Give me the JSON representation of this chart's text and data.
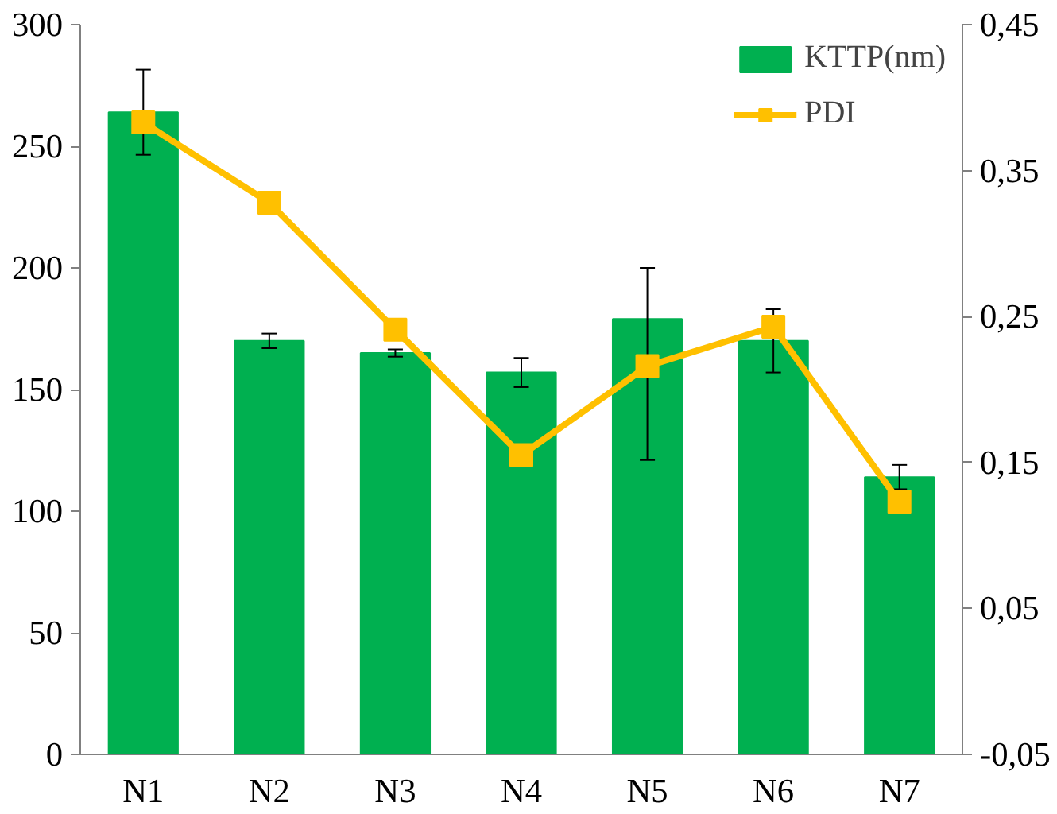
{
  "chart_data": {
    "type": "bar",
    "categories": [
      "N1",
      "N2",
      "N3",
      "N4",
      "N5",
      "N6",
      "N7"
    ],
    "series": [
      {
        "name": "KTTP(nm)",
        "color": "#00b050",
        "values": [
          264,
          170,
          165,
          157,
          179,
          170,
          114
        ],
        "errors": [
          17.5,
          3,
          1.5,
          6,
          [
            121,
            200
          ],
          13,
          5
        ]
      },
      {
        "name": "PDI",
        "type": "line",
        "axis": "y2",
        "color": "#ffc000",
        "marker": "square",
        "values": [
          0.383,
          0.328,
          0.241,
          0.155,
          0.216,
          0.243,
          0.123
        ]
      }
    ],
    "ylim": [
      0,
      300
    ],
    "yticks": [
      0,
      50,
      100,
      150,
      200,
      250,
      300
    ],
    "y2lim": [
      -0.05,
      0.45
    ],
    "y2ticks": [
      {
        "value": -0.05,
        "label": "-0,05"
      },
      {
        "value": 0.05,
        "label": "0,05"
      },
      {
        "value": 0.15,
        "label": "0,15"
      },
      {
        "value": 0.25,
        "label": "0,25"
      },
      {
        "value": 0.35,
        "label": "0,35"
      },
      {
        "value": 0.45,
        "label": "0,45"
      }
    ],
    "grid": false,
    "legend": "top right"
  }
}
